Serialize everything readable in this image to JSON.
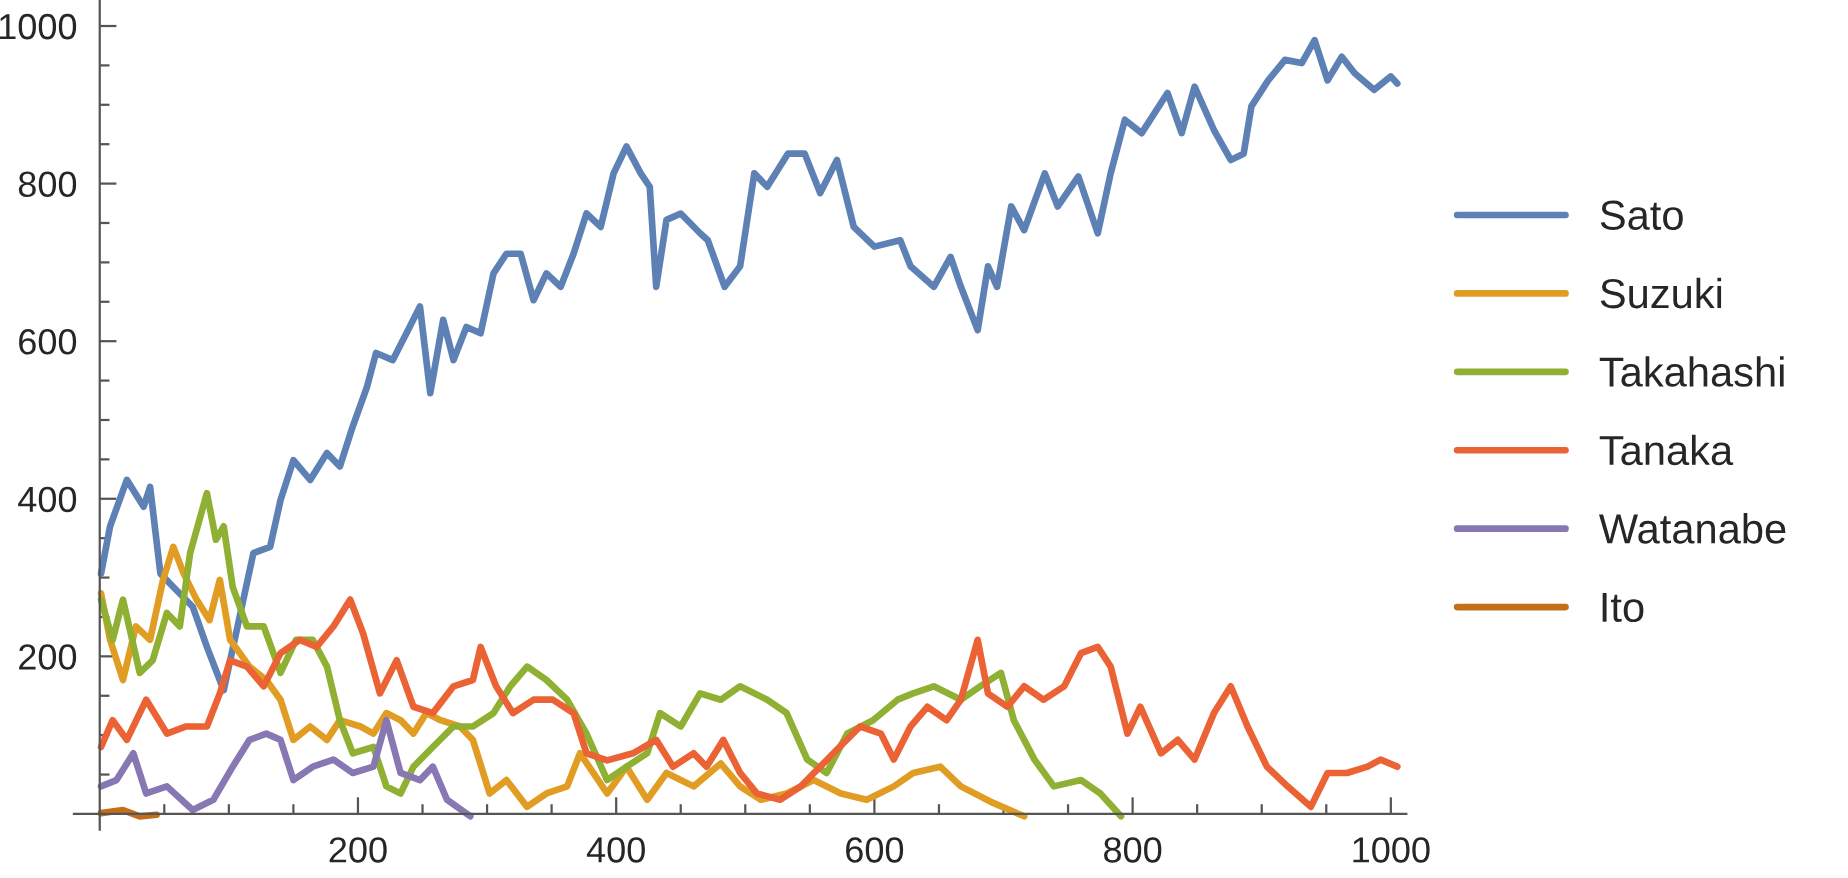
{
  "chart_data": {
    "type": "line",
    "xlim": [
      -20,
      1012
    ],
    "ylim": [
      -20,
      1033
    ],
    "xticks": [
      {
        "value": 50,
        "label": null
      },
      {
        "value": 100,
        "label": null
      },
      {
        "value": 150,
        "label": null
      },
      200,
      {
        "value": 250,
        "label": null
      },
      {
        "value": 300,
        "label": null
      },
      {
        "value": 350,
        "label": null
      },
      400,
      {
        "value": 450,
        "label": null
      },
      {
        "value": 500,
        "label": null
      },
      {
        "value": 550,
        "label": null
      },
      600,
      {
        "value": 650,
        "label": null
      },
      {
        "value": 700,
        "label": null
      },
      {
        "value": 750,
        "label": null
      },
      800,
      {
        "value": 850,
        "label": null
      },
      {
        "value": 900,
        "label": null
      },
      {
        "value": 950,
        "label": null
      },
      1000
    ],
    "yticks": [
      {
        "value": 50,
        "label": null
      },
      {
        "value": 100,
        "label": null
      },
      {
        "value": 150,
        "label": null
      },
      200,
      {
        "value": 250,
        "label": null
      },
      {
        "value": 300,
        "label": null
      },
      {
        "value": 350,
        "label": null
      },
      400,
      {
        "value": 450,
        "label": null
      },
      {
        "value": 500,
        "label": null
      },
      {
        "value": 550,
        "label": null
      },
      600,
      {
        "value": 650,
        "label": null
      },
      {
        "value": 700,
        "label": null
      },
      {
        "value": 750,
        "label": null
      },
      800,
      {
        "value": 850,
        "label": null
      },
      {
        "value": 900,
        "label": null
      },
      {
        "value": 950,
        "label": null
      },
      1000
    ],
    "grid": false,
    "legend": "right",
    "marker": "none",
    "line_style": "solid",
    "series": [
      {
        "name": "Sato",
        "color": "#5e81b5",
        "x": [
          1,
          8,
          21,
          34,
          39,
          47,
          57,
          72,
          83,
          96,
          109,
          119,
          132,
          140,
          150,
          163,
          176,
          186,
          196,
          207,
          214,
          227,
          240,
          248,
          256,
          266,
          274,
          284,
          295,
          305,
          315,
          326,
          336,
          346,
          357,
          367,
          377,
          388,
          398,
          408,
          419,
          426,
          431,
          439,
          450,
          465,
          471,
          484,
          496,
          507,
          517,
          533,
          546,
          558,
          571,
          584,
          600,
          620,
          628,
          646,
          659,
          667,
          680,
          688,
          695,
          706,
          716,
          732,
          742,
          758,
          773,
          783,
          794,
          807,
          827,
          838,
          848,
          863,
          876,
          886,
          892,
          905,
          918,
          931,
          941,
          951,
          962,
          972,
          987,
          1000,
          1005
        ],
        "values": [
          305,
          365,
          424,
          390,
          415,
          305,
          288,
          263,
          212,
          157,
          255,
          331,
          339,
          398,
          449,
          424,
          458,
          441,
          492,
          542,
          585,
          576,
          618,
          644,
          534,
          627,
          576,
          618,
          610,
          686,
          711,
          711,
          652,
          686,
          669,
          711,
          762,
          745,
          813,
          847,
          813,
          796,
          669,
          754,
          762,
          737,
          728,
          669,
          695,
          813,
          796,
          838,
          838,
          788,
          830,
          745,
          720,
          728,
          695,
          669,
          707,
          669,
          614,
          695,
          669,
          771,
          741,
          813,
          771,
          809,
          737,
          813,
          881,
          864,
          915,
          864,
          923,
          868,
          830,
          838,
          898,
          931,
          957,
          953,
          982,
          931,
          961,
          940,
          919,
          936,
          927
        ]
      },
      {
        "name": "Suzuki",
        "color": "#e19c24",
        "x": [
          1,
          8,
          18,
          28,
          39,
          49,
          57,
          65,
          75,
          85,
          93,
          101,
          116,
          129,
          140,
          150,
          163,
          176,
          186,
          202,
          212,
          222,
          233,
          243,
          253,
          264,
          279,
          289,
          302,
          315,
          331,
          346,
          362,
          372,
          393,
          408,
          424,
          439,
          460,
          481,
          496,
          512,
          532,
          553,
          574,
          594,
          615,
          630,
          651,
          667,
          692,
          716
        ],
        "values": [
          280,
          221,
          170,
          238,
          221,
          297,
          339,
          305,
          272,
          246,
          297,
          221,
          187,
          170,
          145,
          94,
          111,
          94,
          119,
          111,
          102,
          128,
          119,
          102,
          128,
          119,
          111,
          94,
          26,
          43,
          9,
          26,
          35,
          77,
          26,
          60,
          18,
          52,
          35,
          64,
          35,
          18,
          26,
          43,
          26,
          18,
          35,
          52,
          60,
          35,
          14,
          -3
        ]
      },
      {
        "name": "Takahashi",
        "color": "#8fb032",
        "x": [
          1,
          10,
          18,
          31,
          41,
          52,
          62,
          70,
          83,
          90,
          96,
          103,
          114,
          127,
          140,
          152,
          165,
          176,
          186,
          196,
          212,
          222,
          233,
          243,
          258,
          274,
          289,
          305,
          318,
          331,
          346,
          362,
          377,
          393,
          408,
          424,
          434,
          450,
          465,
          481,
          496,
          517,
          532,
          548,
          563,
          579,
          599,
          618,
          630,
          646,
          667,
          682,
          698,
          708,
          724,
          739,
          760,
          775,
          791
        ],
        "values": [
          272,
          221,
          272,
          179,
          195,
          255,
          238,
          331,
          407,
          348,
          365,
          288,
          238,
          238,
          179,
          221,
          221,
          187,
          119,
          77,
          85,
          35,
          26,
          60,
          85,
          111,
          111,
          128,
          162,
          187,
          170,
          145,
          102,
          43,
          60,
          77,
          128,
          111,
          153,
          145,
          162,
          145,
          128,
          69,
          52,
          102,
          119,
          145,
          153,
          162,
          145,
          162,
          179,
          119,
          69,
          35,
          43,
          26,
          -3
        ]
      },
      {
        "name": "Tanaka",
        "color": "#eb6235",
        "x": [
          1,
          10,
          21,
          36,
          52,
          67,
          83,
          93,
          101,
          114,
          127,
          140,
          155,
          168,
          181,
          194,
          204,
          217,
          230,
          243,
          258,
          274,
          289,
          295,
          307,
          320,
          336,
          351,
          367,
          377,
          393,
          413,
          431,
          444,
          460,
          470,
          483,
          496,
          509,
          527,
          543,
          558,
          573,
          589,
          605,
          615,
          628,
          641,
          656,
          667,
          680,
          688,
          703,
          716,
          731,
          747,
          760,
          773,
          783,
          796,
          806,
          822,
          835,
          848,
          863,
          876,
          889,
          904,
          920,
          938,
          951,
          966,
          982,
          992,
          1005
        ],
        "values": [
          85,
          119,
          94,
          145,
          102,
          111,
          111,
          153,
          195,
          187,
          162,
          204,
          221,
          212,
          238,
          272,
          229,
          153,
          195,
          136,
          128,
          162,
          170,
          212,
          162,
          128,
          145,
          145,
          128,
          77,
          68,
          77,
          94,
          60,
          77,
          60,
          94,
          52,
          26,
          18,
          35,
          60,
          85,
          111,
          102,
          69,
          111,
          136,
          119,
          145,
          221,
          153,
          136,
          162,
          145,
          162,
          204,
          212,
          187,
          102,
          136,
          77,
          94,
          69,
          128,
          162,
          111,
          60,
          35,
          9,
          52,
          52,
          60,
          69,
          60
        ]
      },
      {
        "name": "Watanabe",
        "color": "#8778b3",
        "x": [
          1,
          13,
          26,
          36,
          52,
          72,
          88,
          103,
          116,
          129,
          140,
          150,
          165,
          181,
          196,
          212,
          222,
          233,
          248,
          258,
          269,
          287
        ],
        "values": [
          35,
          43,
          77,
          26,
          35,
          5,
          18,
          60,
          94,
          102,
          94,
          43,
          60,
          69,
          52,
          60,
          119,
          52,
          43,
          60,
          18,
          -3
        ]
      },
      {
        "name": "Ito",
        "color": "#c56e1a",
        "x": [
          1,
          18,
          31,
          44
        ],
        "values": [
          1,
          5,
          -3,
          -1
        ]
      }
    ]
  }
}
